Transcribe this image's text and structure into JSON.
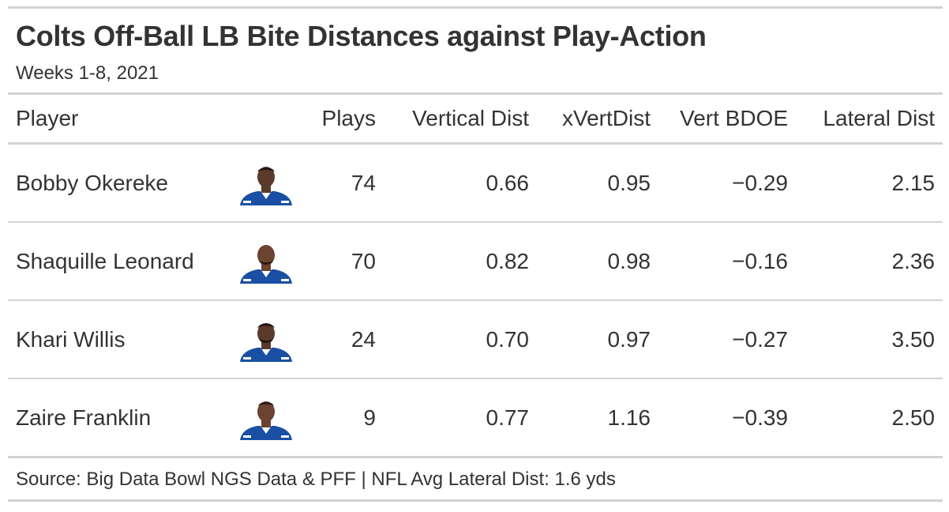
{
  "title": "Colts Off-Ball LB Bite Distances against Play-Action",
  "subtitle": "Weeks 1-8, 2021",
  "columns": {
    "player": "Player",
    "headshot": "",
    "plays": "Plays",
    "vertical_dist": "Vertical Dist",
    "x_vert_dist": "xVertDist",
    "vert_bdoe": "Vert BDOE",
    "lateral_dist": "Lateral Dist"
  },
  "rows": [
    {
      "player": "Bobby Okereke",
      "plays": "74",
      "vertical_dist": "0.66",
      "x_vert_dist": "0.95",
      "vert_bdoe": "−0.29",
      "lateral_dist": "2.15"
    },
    {
      "player": "Shaquille Leonard",
      "plays": "70",
      "vertical_dist": "0.82",
      "x_vert_dist": "0.98",
      "vert_bdoe": "−0.16",
      "lateral_dist": "2.36"
    },
    {
      "player": "Khari Willis",
      "plays": "24",
      "vertical_dist": "0.70",
      "x_vert_dist": "0.97",
      "vert_bdoe": "−0.27",
      "lateral_dist": "3.50"
    },
    {
      "player": "Zaire Franklin",
      "plays": "9",
      "vertical_dist": "0.77",
      "x_vert_dist": "1.16",
      "vert_bdoe": "−0.39",
      "lateral_dist": "2.50"
    }
  ],
  "source_note": "Source: Big Data Bowl NGS Data & PFF | NFL Avg Lateral Dist: 1.6 yds",
  "colors": {
    "jersey": "#1a4fa3",
    "skin_dark": "#5a3a2a",
    "skin_mid": "#6b4330",
    "rule": "#d3d3d3",
    "text": "#333333"
  },
  "chart_data": {
    "type": "table",
    "title": "Colts Off-Ball LB Bite Distances against Play-Action",
    "subtitle": "Weeks 1-8, 2021",
    "columns": [
      "Player",
      "Plays",
      "Vertical Dist",
      "xVertDist",
      "Vert BDOE",
      "Lateral Dist"
    ],
    "rows": [
      [
        "Bobby Okereke",
        74,
        0.66,
        0.95,
        -0.29,
        2.15
      ],
      [
        "Shaquille Leonard",
        70,
        0.82,
        0.98,
        -0.16,
        2.36
      ],
      [
        "Khari Willis",
        24,
        0.7,
        0.97,
        -0.27,
        3.5
      ],
      [
        "Zaire Franklin",
        9,
        0.77,
        1.16,
        -0.39,
        2.5
      ]
    ],
    "source": "Source: Big Data Bowl NGS Data & PFF | NFL Avg Lateral Dist: 1.6 yds"
  }
}
